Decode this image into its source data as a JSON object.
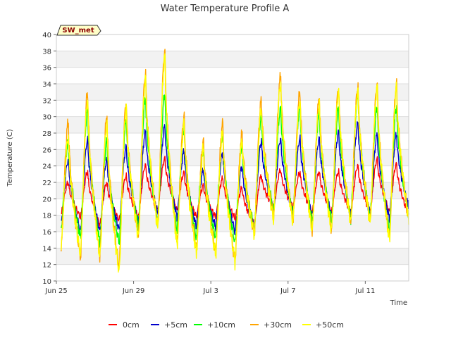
{
  "chart_data": {
    "type": "line",
    "title": "Water Temperature Profile A",
    "xlabel": "Time",
    "ylabel": "Temperature (C)",
    "ylim": [
      10,
      40
    ],
    "yticks": [
      10,
      12,
      14,
      16,
      18,
      20,
      22,
      24,
      26,
      28,
      30,
      32,
      34,
      36,
      38,
      40
    ],
    "xlim": [
      "2023-06-25",
      "2023-07-13 06:00"
    ],
    "xticks": [
      {
        "value": "2023-06-25",
        "label": "Jun 25"
      },
      {
        "value": "2023-06-29",
        "label": "Jun 29"
      },
      {
        "value": "2023-07-03",
        "label": "Jul 3"
      },
      {
        "value": "2023-07-07",
        "label": "Jul 7"
      },
      {
        "value": "2023-07-11",
        "label": "Jul 11"
      }
    ],
    "grid": "horizontal bands",
    "legend_position": "bottom",
    "annotation": "SW_met",
    "series": [
      {
        "name": "0cm",
        "color": "#ff0000",
        "daily_min": [
          18.2,
          17.8,
          16.8,
          17.4,
          17.8,
          18.6,
          18.6,
          17.8,
          17.8,
          17.6,
          16.8,
          19.0,
          19.0,
          18.4,
          18.4,
          18.4,
          18.4,
          18.4,
          18.0
        ],
        "daily_max": [
          22.0,
          23.3,
          22.0,
          22.8,
          24.1,
          24.9,
          23.2,
          21.6,
          22.5,
          21.3,
          22.8,
          23.5,
          23.2,
          23.3,
          23.3,
          24.0,
          24.8,
          24.2,
          20.5
        ]
      },
      {
        "name": "+5cm",
        "color": "#0000cc",
        "daily_min": [
          17.0,
          16.0,
          16.0,
          16.2,
          17.2,
          18.2,
          17.8,
          16.6,
          16.6,
          16.0,
          16.6,
          18.6,
          18.4,
          18.0,
          18.0,
          18.0,
          18.0,
          17.6,
          19.0
        ],
        "daily_max": [
          24.7,
          27.2,
          24.8,
          26.3,
          28.2,
          28.8,
          25.8,
          23.5,
          25.6,
          24.0,
          27.0,
          27.3,
          27.3,
          27.3,
          28.1,
          29.2,
          27.8,
          27.8,
          19.8
        ]
      },
      {
        "name": "+10cm",
        "color": "#00ff00",
        "daily_min": [
          16.4,
          15.2,
          14.6,
          14.6,
          16.6,
          17.0,
          16.2,
          15.2,
          15.2,
          14.6,
          16.4,
          18.6,
          18.0,
          17.2,
          17.2,
          17.6,
          17.6,
          16.0,
          18.0
        ],
        "daily_max": [
          27.0,
          30.8,
          27.0,
          29.5,
          32.2,
          32.8,
          28.5,
          26.0,
          27.8,
          26.5,
          30.0,
          31.0,
          31.2,
          30.5,
          31.0,
          32.8,
          31.2,
          31.2,
          18.0
        ]
      },
      {
        "name": "+30cm",
        "color": "#ffa500",
        "daily_min": [
          14.4,
          12.8,
          13.0,
          11.6,
          15.4,
          16.6,
          14.6,
          13.8,
          13.6,
          12.4,
          15.8,
          17.8,
          17.2,
          16.2,
          16.2,
          17.2,
          17.2,
          15.0,
          17.6
        ],
        "daily_max": [
          29.3,
          33.0,
          30.0,
          31.8,
          35.3,
          38.0,
          30.0,
          27.0,
          29.2,
          28.0,
          32.0,
          35.0,
          33.0,
          32.2,
          33.5,
          33.7,
          34.0,
          34.0,
          17.6
        ]
      },
      {
        "name": "+50cm",
        "color": "#ffff00",
        "daily_min": [
          14.2,
          13.2,
          12.8,
          11.0,
          15.2,
          16.4,
          14.2,
          13.4,
          13.2,
          12.3,
          15.6,
          17.4,
          17.0,
          16.0,
          16.0,
          17.0,
          17.0,
          14.8,
          17.4
        ],
        "daily_max": [
          27.5,
          32.0,
          29.0,
          31.0,
          34.5,
          37.2,
          29.0,
          26.0,
          28.0,
          27.0,
          31.0,
          34.0,
          32.0,
          31.5,
          33.0,
          33.0,
          33.5,
          33.5,
          17.4
        ]
      }
    ]
  }
}
